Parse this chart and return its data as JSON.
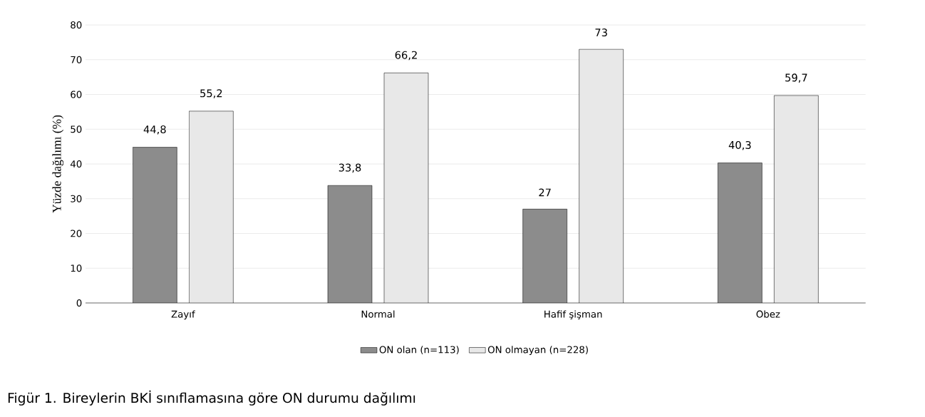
{
  "chart_data": {
    "type": "bar",
    "ylabel": "Yüzde dağılımı  (%)",
    "categories": [
      "Zayıf",
      "Normal",
      "Hafif şişman",
      "Obez"
    ],
    "series": [
      {
        "name": "ON olan (n=113)",
        "color": "#8c8c8c",
        "values": [
          44.8,
          33.8,
          27,
          40.3
        ],
        "value_labels": [
          "44,8",
          "33,8",
          "27",
          "40,3"
        ]
      },
      {
        "name": "ON olmayan (n=228)",
        "color": "#e8e8e8",
        "values": [
          55.2,
          66.2,
          73,
          59.7
        ],
        "value_labels": [
          "55,2",
          "66,2",
          "73",
          "59,7"
        ]
      }
    ],
    "ylim": [
      0,
      80
    ],
    "yticks": [
      0,
      10,
      20,
      30,
      40,
      50,
      60,
      70,
      80
    ],
    "grid": "y",
    "legend": "bottom",
    "annotations": [
      "Figür 1. Bireylerin BKİ sınıflamasına göre ON durumu dağılımı"
    ]
  }
}
